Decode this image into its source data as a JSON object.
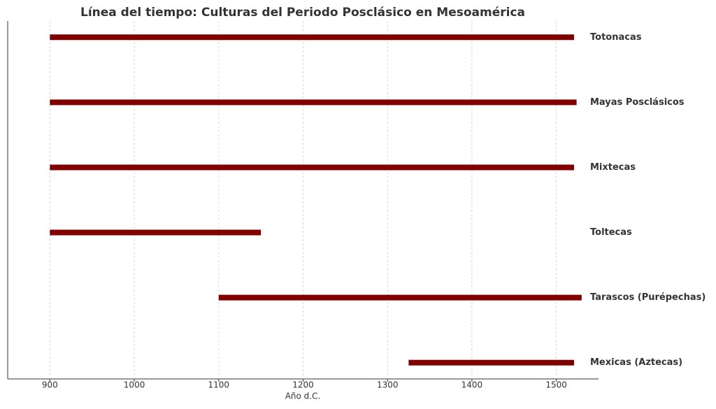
{
  "chart_data": {
    "type": "timeline",
    "title": "Línea del tiempo: Culturas del Periodo Posclásico en Mesoamérica",
    "x_label": "Año d.C.",
    "categories": [
      "Totonacas",
      "Mayas Posclásicos",
      "Mixtecas",
      "Toltecas",
      "Tarascos (Purépechas)",
      "Mexicas (Aztecas)"
    ],
    "start": [
      900,
      900,
      900,
      900,
      1100,
      1325
    ],
    "end": [
      1521,
      1524,
      1521,
      1150,
      1530,
      1521
    ],
    "color": "#800000",
    "xlim": [
      850,
      1550
    ],
    "xticks": [
      900,
      1000,
      1100,
      1200,
      1300,
      1400,
      1500
    ],
    "grid": true
  }
}
